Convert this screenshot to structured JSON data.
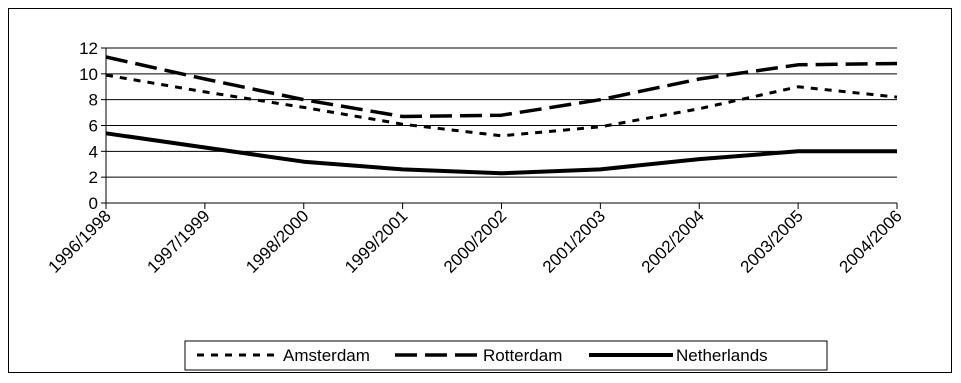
{
  "chart_data": {
    "type": "line",
    "title": "",
    "xlabel": "",
    "ylabel": "",
    "categories": [
      "1996/1998",
      "1997/1999",
      "1998/2000",
      "1999/2001",
      "2000/2002",
      "2001/2003",
      "2002/2004",
      "2003/2005",
      "2004/2006"
    ],
    "ylim": [
      0,
      12
    ],
    "yticks": [
      0,
      2,
      4,
      6,
      8,
      10,
      12
    ],
    "grid": "horizontal",
    "legend_position": "bottom",
    "series": [
      {
        "name": "Amsterdam",
        "style": "short-dash",
        "color": "#000000",
        "values": [
          9.9,
          8.6,
          7.4,
          6.1,
          5.2,
          5.9,
          7.3,
          9.0,
          8.2
        ]
      },
      {
        "name": "Rotterdam",
        "style": "long-dash",
        "color": "#000000",
        "values": [
          11.3,
          9.6,
          8.0,
          6.7,
          6.8,
          8.0,
          9.6,
          10.7,
          10.8
        ]
      },
      {
        "name": "Netherlands",
        "style": "solid",
        "color": "#000000",
        "values": [
          5.4,
          4.3,
          3.2,
          2.6,
          2.3,
          2.6,
          3.4,
          4.0,
          4.0
        ]
      }
    ]
  }
}
